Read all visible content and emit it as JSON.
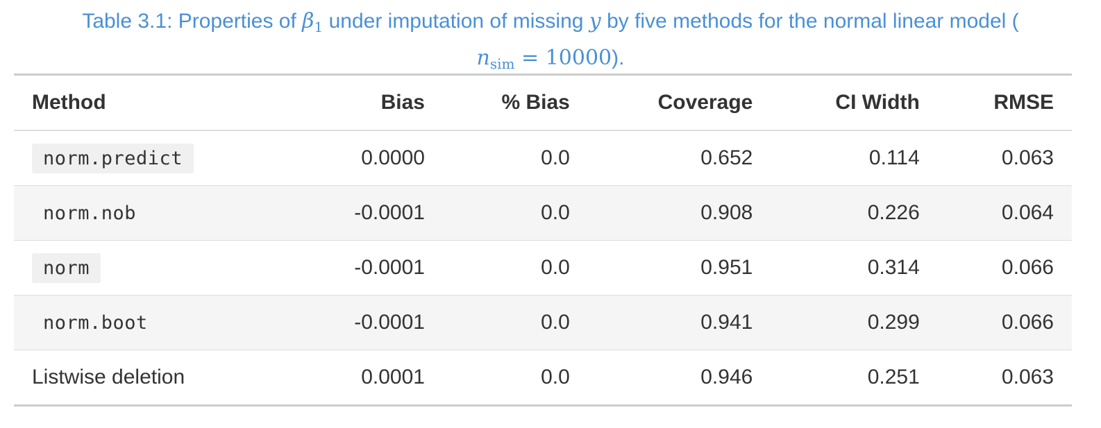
{
  "caption": {
    "prefix": "Table 3.1: Properties of ",
    "beta": "β",
    "beta_sub": "1",
    "mid": " under imputation of missing ",
    "y": "y",
    "suffix": " by five methods for the normal linear model (",
    "n": "n",
    "n_sub": "sim",
    "eq": " = 10000",
    "end": ")."
  },
  "table": {
    "headers": [
      "Method",
      "Bias",
      "% Bias",
      "Coverage",
      "CI Width",
      "RMSE"
    ],
    "rows": [
      {
        "method": "norm.predict",
        "code": true,
        "bias": "0.0000",
        "pct_bias": "0.0",
        "coverage": "0.652",
        "ci_width": "0.114",
        "rmse": "0.063"
      },
      {
        "method": "norm.nob",
        "code": true,
        "bias": "-0.0001",
        "pct_bias": "0.0",
        "coverage": "0.908",
        "ci_width": "0.226",
        "rmse": "0.064"
      },
      {
        "method": "norm",
        "code": true,
        "bias": "-0.0001",
        "pct_bias": "0.0",
        "coverage": "0.951",
        "ci_width": "0.314",
        "rmse": "0.066"
      },
      {
        "method": "norm.boot",
        "code": true,
        "bias": "-0.0001",
        "pct_bias": "0.0",
        "coverage": "0.941",
        "ci_width": "0.299",
        "rmse": "0.066"
      },
      {
        "method": "Listwise deletion",
        "code": false,
        "bias": "0.0001",
        "pct_bias": "0.0",
        "coverage": "0.946",
        "ci_width": "0.251",
        "rmse": "0.063"
      }
    ]
  }
}
